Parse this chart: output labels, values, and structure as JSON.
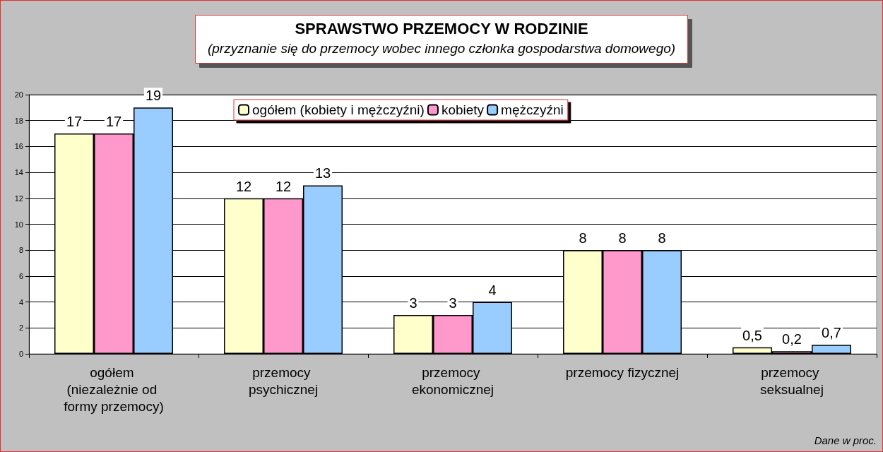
{
  "chart_data": {
    "type": "bar",
    "title": "SPRAWSTWO PRZEMOCY W RODZINIE",
    "subtitle": "(przyznanie się do przemocy wobec innego członka gospodarstwa domowego)",
    "categories": [
      "ogółem (niezależnie od formy przemocy)",
      "przemocy psychicznej",
      "przemocy ekonomicznej",
      "przemocy fizycznej",
      "przemocy seksualnej"
    ],
    "series": [
      {
        "name": "ogółem (kobiety i mężczyźni)",
        "color": "#ffffcc",
        "values": [
          17,
          12,
          3,
          8,
          0.5
        ],
        "value_labels": [
          "17",
          "12",
          "3",
          "8",
          "0,5"
        ]
      },
      {
        "name": "kobiety",
        "color": "#ff99cc",
        "values": [
          17,
          12,
          3,
          8,
          0.2
        ],
        "value_labels": [
          "17",
          "12",
          "3",
          "8",
          "0,2"
        ]
      },
      {
        "name": "mężczyźni",
        "color": "#99ccff",
        "values": [
          19,
          13,
          4,
          8,
          0.7
        ],
        "value_labels": [
          "19",
          "13",
          "4",
          "8",
          "0,7"
        ]
      }
    ],
    "ylim": [
      0,
      20
    ],
    "yticks": [
      0,
      2,
      4,
      6,
      8,
      10,
      12,
      14,
      16,
      18,
      20
    ],
    "grid": "y",
    "legend": "top",
    "annotations": [
      "Dane w proc."
    ]
  }
}
